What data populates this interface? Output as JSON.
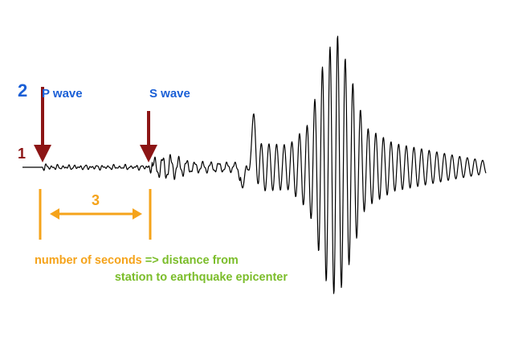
{
  "step_labels": {
    "p_step": "2",
    "baseline_step": "1",
    "interval_step": "3"
  },
  "arrows": [
    {
      "label": "P wave"
    },
    {
      "label": "S wave"
    }
  ],
  "caption": {
    "line1": {
      "part1": "number of seconds",
      "part2": "=> distance from"
    },
    "line2": "station to earthquake epicenter"
  }
}
